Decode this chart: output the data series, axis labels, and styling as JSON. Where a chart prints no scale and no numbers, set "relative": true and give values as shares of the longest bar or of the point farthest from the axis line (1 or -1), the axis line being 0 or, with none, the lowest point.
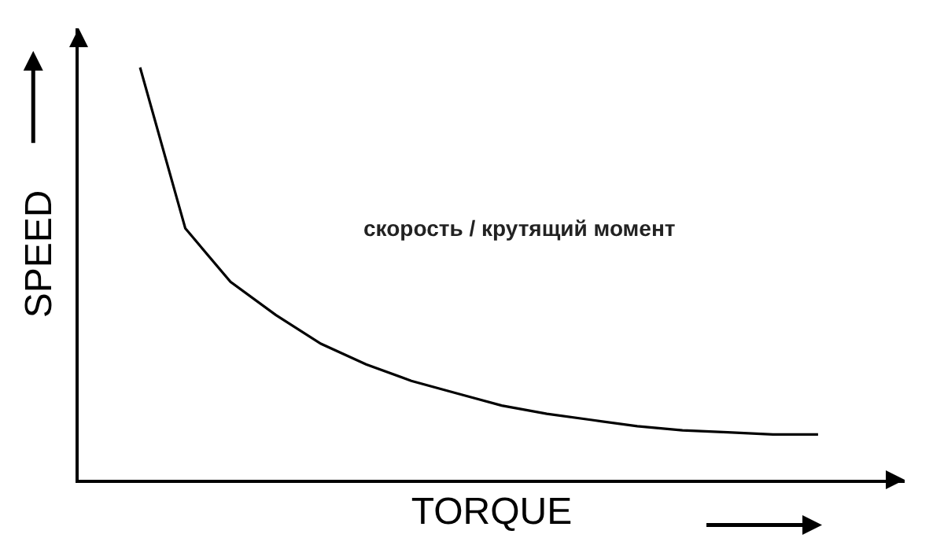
{
  "chart_data": {
    "type": "line",
    "xlabel": "TORQUE",
    "ylabel": "SPEED",
    "relative": true,
    "categories": [
      null,
      null,
      null,
      null,
      null,
      null,
      null,
      null,
      null,
      null,
      null,
      null,
      null,
      null,
      null,
      null
    ],
    "series": [
      {
        "color": "#000000",
        "values": [
          1.0,
          0.61,
          0.48,
          0.4,
          0.33,
          0.28,
          0.24,
          0.21,
          0.18,
          0.16,
          0.145,
          0.13,
          0.12,
          0.115,
          0.11,
          0.11
        ]
      }
    ],
    "annotations": [
      "скорость / крутящий момент"
    ],
    "marker": "none",
    "line_style": "solid"
  }
}
